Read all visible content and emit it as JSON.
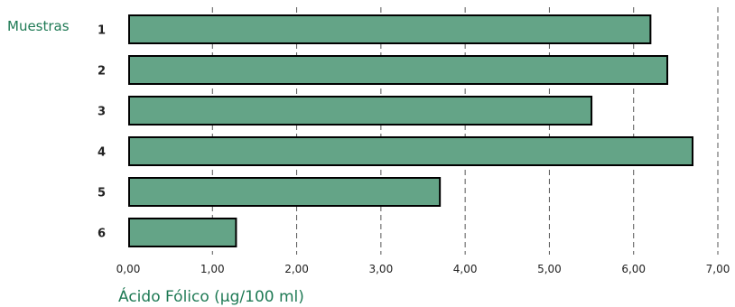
{
  "chart_data": {
    "type": "bar",
    "orientation": "horizontal",
    "categories": [
      "1",
      "2",
      "3",
      "4",
      "5",
      "6"
    ],
    "values": [
      6.2,
      6.4,
      5.5,
      6.7,
      3.7,
      1.28
    ],
    "category_axis_label": "Muestras",
    "xlabel": "Ácido Fólico (µg/100 ml)",
    "xlim": [
      0,
      7
    ],
    "xticks": [
      "0,00",
      "1,00",
      "2,00",
      "3,00",
      "4,00",
      "5,00",
      "6,00",
      "7,00"
    ],
    "grid": "vertical dashed",
    "legend": "none"
  },
  "colors": {
    "bar_fill": "#64a487",
    "bar_stroke": "#000000",
    "accent_text": "#1f7a55",
    "grid": "#555555"
  }
}
